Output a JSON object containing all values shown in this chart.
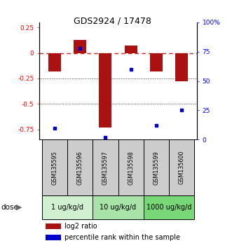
{
  "title": "GDS2924 / 17478",
  "samples": [
    "GSM135595",
    "GSM135596",
    "GSM135597",
    "GSM135598",
    "GSM135599",
    "GSM135600"
  ],
  "log2_ratio": [
    -0.18,
    0.13,
    -0.73,
    0.07,
    -0.18,
    -0.28
  ],
  "percentile_rank": [
    10,
    78,
    2,
    60,
    12,
    25
  ],
  "ylim_left": [
    -0.85,
    0.3
  ],
  "ylim_right": [
    0,
    100
  ],
  "yticks_left": [
    0.25,
    0,
    -0.25,
    -0.5,
    -0.75
  ],
  "yticks_right": [
    100,
    75,
    50,
    25,
    0
  ],
  "hlines": [
    -0.25,
    -0.5
  ],
  "dose_groups": [
    {
      "label": "1 ug/kg/d",
      "start": 0,
      "end": 1,
      "color": "#d0f0d0"
    },
    {
      "label": "10 ug/kg/d",
      "start": 2,
      "end": 3,
      "color": "#a8e4a8"
    },
    {
      "label": "1000 ug/kg/d",
      "start": 4,
      "end": 5,
      "color": "#78d878"
    }
  ],
  "bar_color": "#aa1111",
  "dot_color": "#0000cc",
  "zero_line_color": "#cc2222",
  "hline_color": "#333333",
  "sample_box_color": "#cccccc",
  "legend_labels": [
    "log2 ratio",
    "percentile rank within the sample"
  ],
  "dose_label": "dose"
}
